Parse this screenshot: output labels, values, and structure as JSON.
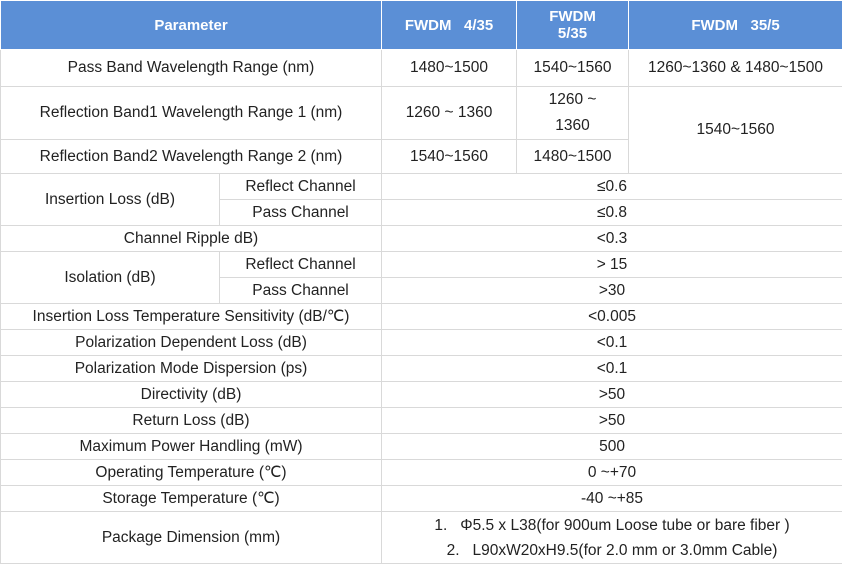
{
  "header": {
    "parameter": "Parameter",
    "col1": "FWDM   4/35",
    "col2_line1": "FWDM",
    "col2_line2": "5/35",
    "col3": "FWDM   35/5"
  },
  "rows": {
    "pass_band": {
      "label": "Pass Band Wavelength Range (nm)",
      "v1": "1480~1500",
      "v2": "1540~1560",
      "v3": "1260~1360 & 1480~1500"
    },
    "reflection1": {
      "label": "Reflection Band1 Wavelength Range 1 (nm)",
      "v1": "1260 ~ 1360",
      "v2_line1": "1260 ~",
      "v2_line2": "1360",
      "v3": "1540~1560"
    },
    "reflection2": {
      "label": "Reflection Band2 Wavelength Range 2 (nm)",
      "v1": "1540~1560",
      "v2": "1480~1500"
    },
    "insertion_loss": {
      "label": "Insertion Loss (dB)",
      "reflect_label": "Reflect Channel",
      "reflect_value": "≤0.6",
      "pass_label": "Pass Channel",
      "pass_value": "≤0.8"
    },
    "channel_ripple": {
      "label": "Channel Ripple dB)",
      "value": "<0.3"
    },
    "isolation": {
      "label": "Isolation (dB)",
      "reflect_label": "Reflect Channel",
      "reflect_value": "> 15",
      "pass_label": "Pass Channel",
      "pass_value": ">30"
    },
    "il_temp_sensitivity": {
      "label": "Insertion Loss Temperature Sensitivity (dB/℃)",
      "value": "<0.005"
    },
    "pdl": {
      "label": "Polarization Dependent Loss (dB)",
      "value": "<0.1"
    },
    "pmd": {
      "label": "Polarization Mode Dispersion (ps)",
      "value": "<0.1"
    },
    "directivity": {
      "label": "Directivity (dB)",
      "value": ">50"
    },
    "return_loss": {
      "label": "Return Loss (dB)",
      "value": ">50"
    },
    "max_power": {
      "label": "Maximum Power Handling (mW)",
      "value": "500"
    },
    "operating_temp": {
      "label": "Operating Temperature (℃)",
      "value": "0 ~+70"
    },
    "storage_temp": {
      "label": "Storage Temperature (℃)",
      "value": "-40 ~+85"
    },
    "package": {
      "label": "Package Dimension (mm)",
      "item1": "1.   Φ5.5 x L38(for 900um Loose tube or bare fiber )",
      "item2": "2.   L90xW20xH9.5(for 2.0 mm or 3.0mm Cable)"
    }
  },
  "colors": {
    "header_bg": "#5b8fd6",
    "header_text": "#ffffff",
    "border": "#d9d9d9"
  }
}
